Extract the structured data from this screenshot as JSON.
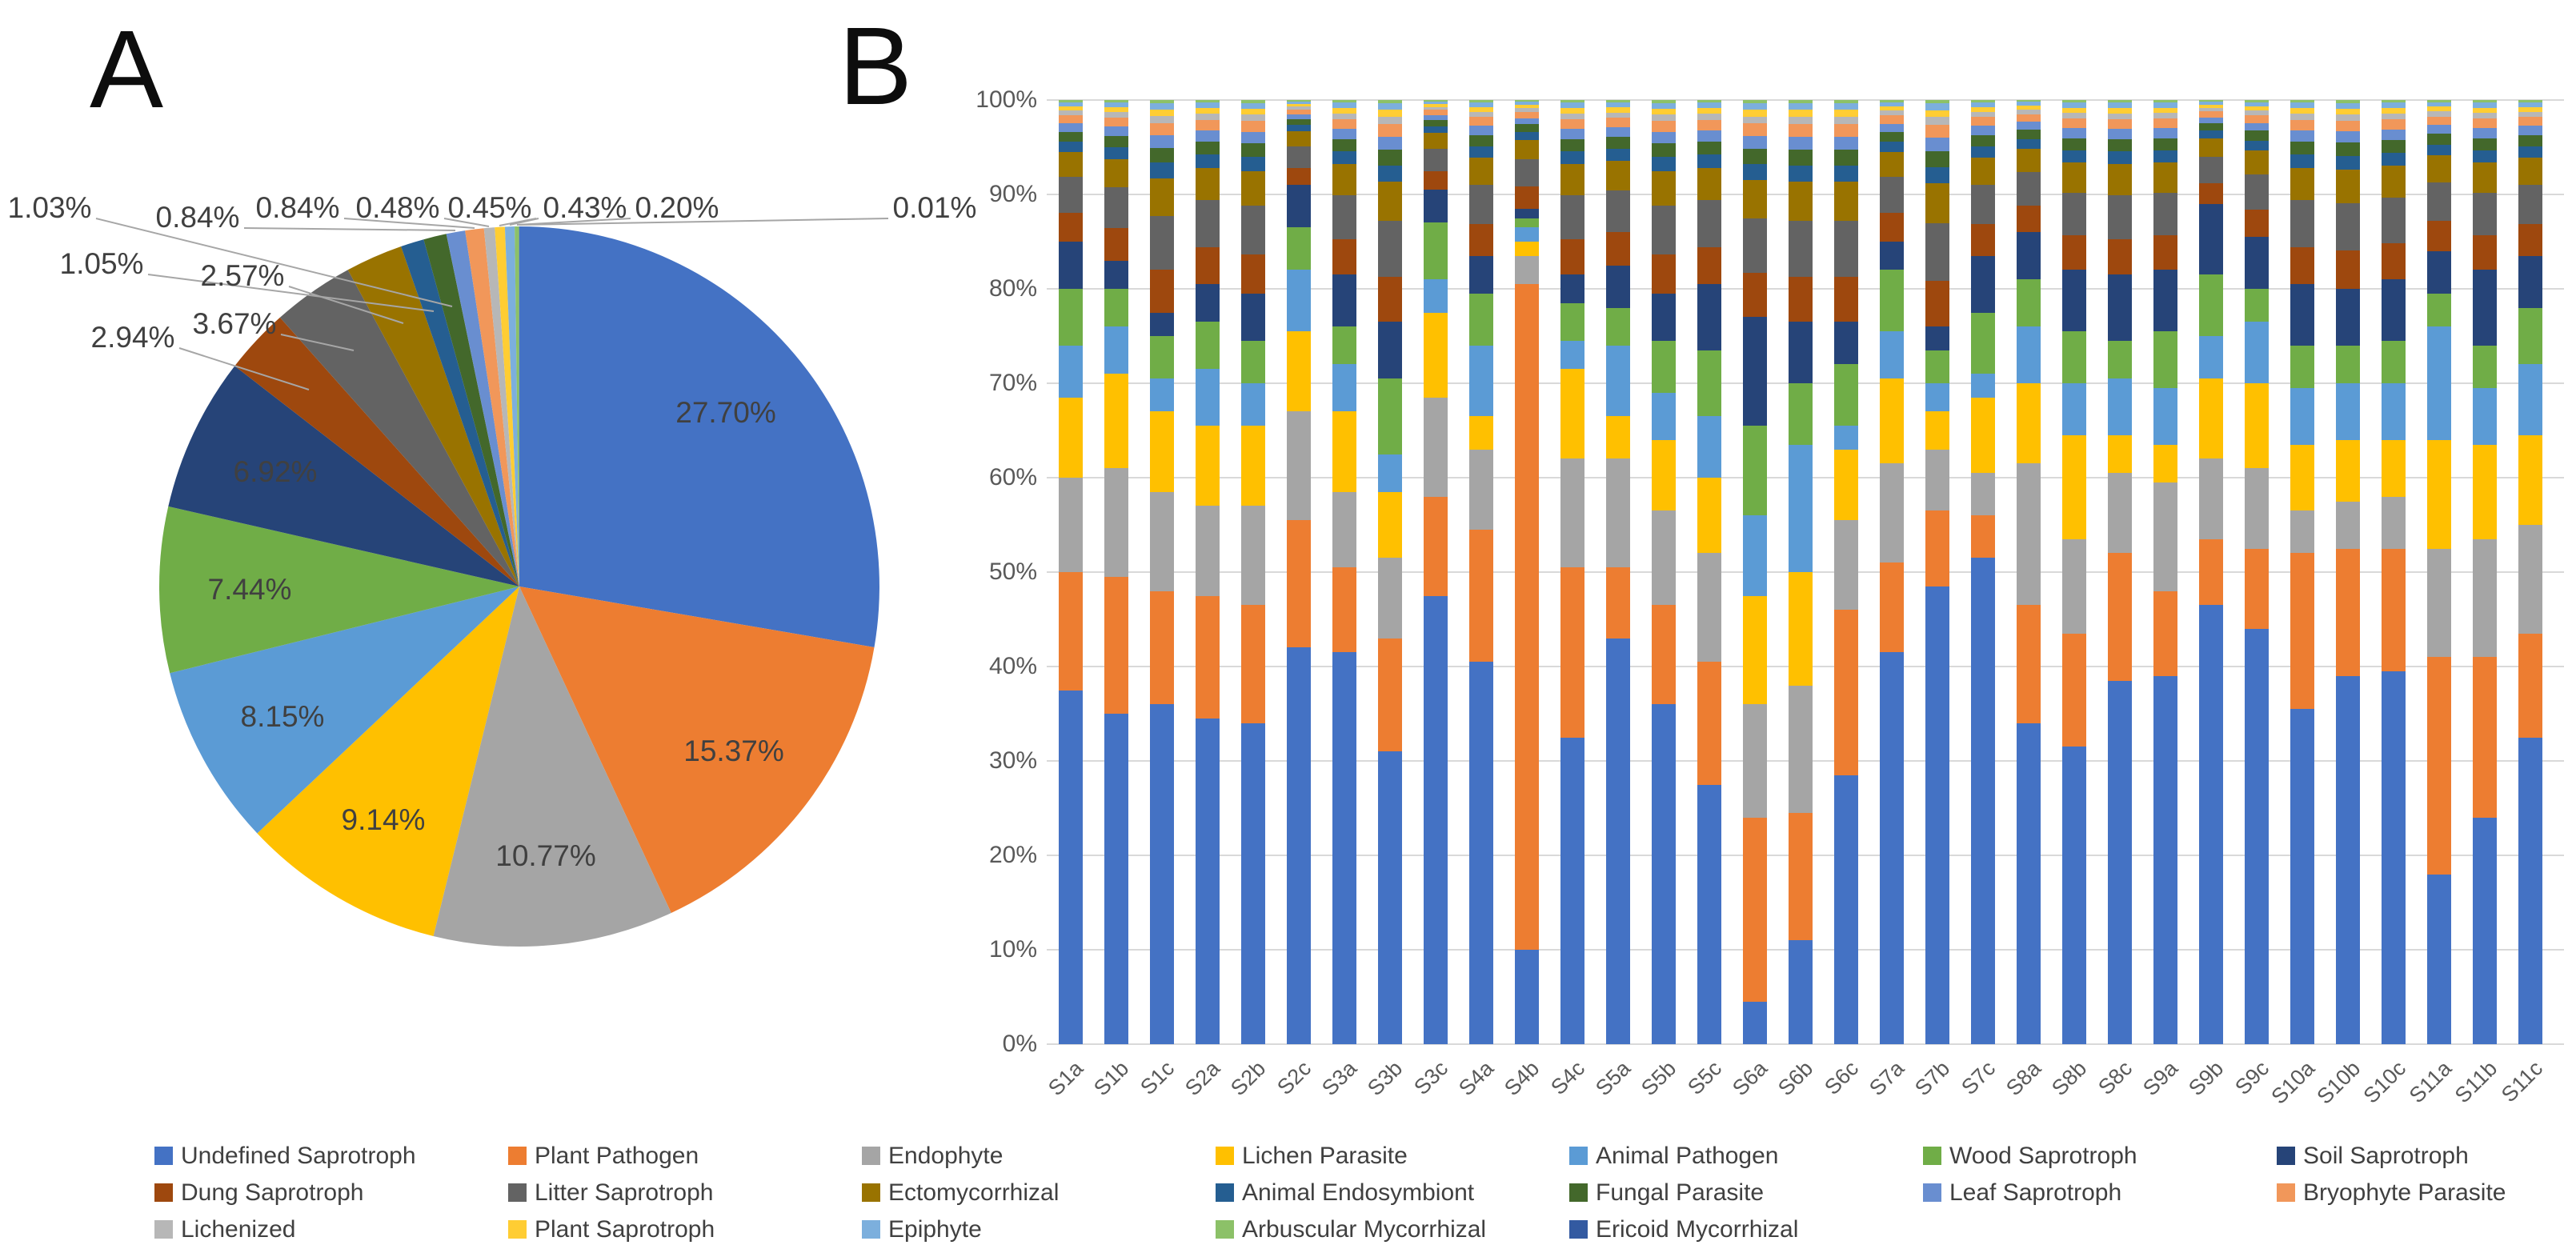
{
  "figure": {
    "panel_a_label": "A",
    "panel_b_label": "B"
  },
  "guilds": [
    {
      "label": "Undefined Saprotroph",
      "color": "#4472C4"
    },
    {
      "label": "Plant Pathogen",
      "color": "#ED7D31"
    },
    {
      "label": "Endophyte",
      "color": "#A5A5A5"
    },
    {
      "label": "Lichen Parasite",
      "color": "#FFC000"
    },
    {
      "label": "Animal Pathogen",
      "color": "#5B9BD5"
    },
    {
      "label": "Wood Saprotroph",
      "color": "#70AD47"
    },
    {
      "label": "Soil Saprotroph",
      "color": "#264478"
    },
    {
      "label": "Dung Saprotroph",
      "color": "#9E480E"
    },
    {
      "label": "Litter Saprotroph",
      "color": "#636363"
    },
    {
      "label": "Ectomycorrhizal",
      "color": "#997300"
    },
    {
      "label": "Animal Endosymbiont",
      "color": "#255E91"
    },
    {
      "label": "Fungal Parasite",
      "color": "#43682B"
    },
    {
      "label": "Leaf Saprotroph",
      "color": "#698ED0"
    },
    {
      "label": "Bryophyte Parasite",
      "color": "#F1975A"
    },
    {
      "label": "Lichenized",
      "color": "#B7B7B7"
    },
    {
      "label": "Plant Saprotroph",
      "color": "#FFCD33"
    },
    {
      "label": "Epiphyte",
      "color": "#7CAFDD"
    },
    {
      "label": "Arbuscular Mycorrhizal",
      "color": "#8CC168"
    },
    {
      "label": "Ericoid Mycorrhizal",
      "color": "#335AA1"
    }
  ],
  "chart_data": [
    {
      "type": "pie",
      "panel": "A",
      "title": "",
      "note": "Relative abundance of fungal functional guilds across the whole study; slices drawn clockwise from 12 o'clock in legend order.",
      "slices": [
        {
          "label": "Undefined Saprotroph",
          "value": 27.7,
          "display": "27.70%",
          "placement": "inside"
        },
        {
          "label": "Plant Pathogen",
          "value": 15.37,
          "display": "15.37%",
          "placement": "inside"
        },
        {
          "label": "Endophyte",
          "value": 10.77,
          "display": "10.77%",
          "placement": "inside"
        },
        {
          "label": "Lichen Parasite",
          "value": 9.14,
          "display": "9.14%",
          "placement": "inside"
        },
        {
          "label": "Animal Pathogen",
          "value": 8.15,
          "display": "8.15%",
          "placement": "inside"
        },
        {
          "label": "Wood Saprotroph",
          "value": 7.44,
          "display": "7.44%",
          "placement": "inside"
        },
        {
          "label": "Soil Saprotroph",
          "value": 6.92,
          "display": "6.92%",
          "placement": "inside",
          "muted": true
        },
        {
          "label": "Dung Saprotroph",
          "value": 2.94,
          "display": "2.94%",
          "placement": "callout",
          "x": 166,
          "y": 421
        },
        {
          "label": "Litter Saprotroph",
          "value": 3.67,
          "display": "3.67%",
          "placement": "callout",
          "x": 293,
          "y": 404
        },
        {
          "label": "Ectomycorrhizal",
          "value": 2.57,
          "display": "2.57%",
          "placement": "callout",
          "x": 303,
          "y": 344
        },
        {
          "label": "Animal Endosymbiont",
          "value": 1.05,
          "display": "1.05%",
          "placement": "callout",
          "x": 127,
          "y": 329
        },
        {
          "label": "Fungal Parasite",
          "value": 1.03,
          "display": "1.03%",
          "placement": "callout",
          "x": 62,
          "y": 259
        },
        {
          "label": "Leaf Saprotroph",
          "value": 0.84,
          "display": "0.84%",
          "placement": "callout",
          "x": 247,
          "y": 271
        },
        {
          "label": "Bryophyte Parasite",
          "value": 0.84,
          "display": "0.84%",
          "placement": "callout",
          "x": 372,
          "y": 259
        },
        {
          "label": "Lichenized",
          "value": 0.48,
          "display": "0.48%",
          "placement": "callout",
          "x": 497,
          "y": 259
        },
        {
          "label": "Plant Saprotroph",
          "value": 0.45,
          "display": "0.45%",
          "placement": "callout",
          "x": 612,
          "y": 259
        },
        {
          "label": "Epiphyte",
          "value": 0.43,
          "display": "0.43%",
          "placement": "callout",
          "x": 731,
          "y": 259
        },
        {
          "label": "Arbuscular Mycorrhizal",
          "value": 0.2,
          "display": "0.20%",
          "placement": "callout",
          "x": 846,
          "y": 259
        },
        {
          "label": "Ericoid Mycorrhizal",
          "value": 0.01,
          "display": "0.01%",
          "placement": "callout",
          "x": 1168,
          "y": 259
        }
      ]
    },
    {
      "type": "bar",
      "stacked": true,
      "panel": "B",
      "title": "",
      "ylim": [
        0,
        100
      ],
      "grid": true,
      "y_axis_ticks": [
        "0%",
        "10%",
        "20%",
        "30%",
        "40%",
        "50%",
        "60%",
        "70%",
        "80%",
        "90%",
        "100%"
      ],
      "categories": [
        "S1a",
        "S1b",
        "S1c",
        "S2a",
        "S2b",
        "S2c",
        "S3a",
        "S3b",
        "S3c",
        "S4a",
        "S4b",
        "S4c",
        "S5a",
        "S5b",
        "S5c",
        "S6a",
        "S6b",
        "S6c",
        "S7a",
        "S7b",
        "S7c",
        "S8a",
        "S8b",
        "S8c",
        "S9a",
        "S9b",
        "S9c",
        "S10a",
        "S10b",
        "S10c",
        "S11a",
        "S11b",
        "S11c"
      ],
      "series": [
        {
          "name": "Undefined Saprotroph",
          "values": [
            37.5,
            35,
            36,
            34.5,
            34,
            42,
            41.5,
            31,
            47.5,
            40.5,
            10,
            32.5,
            43,
            36,
            27.5,
            4.5,
            11,
            28.5,
            41.5,
            48.5,
            51.5,
            34,
            31.5,
            38.5,
            39,
            46.5,
            44,
            35.5,
            39,
            39.5,
            18,
            24,
            32.5
          ]
        },
        {
          "name": "Plant Pathogen",
          "values": [
            12.5,
            14.5,
            12,
            13,
            12.5,
            13.5,
            9,
            12,
            10.5,
            14,
            70.5,
            18,
            7.5,
            10.5,
            13,
            19.5,
            13.5,
            17.5,
            9.5,
            8,
            4.5,
            12.5,
            12,
            13.5,
            9,
            7,
            8.5,
            16.5,
            13.5,
            13,
            23,
            17,
            11
          ]
        },
        {
          "name": "Endophyte",
          "values": [
            10,
            11.5,
            10.5,
            9.5,
            10.5,
            11.5,
            8,
            8.5,
            10.5,
            8.5,
            3,
            11.5,
            11.5,
            10,
            11.5,
            12,
            13.5,
            9.5,
            10.5,
            6.5,
            4.5,
            15,
            10,
            8.5,
            11.5,
            8.5,
            8.5,
            4.5,
            5,
            5.5,
            11.5,
            12.5,
            11.5
          ]
        },
        {
          "name": "Lichen Parasite",
          "values": [
            8.5,
            10,
            8.5,
            8.5,
            8.5,
            8.5,
            8.5,
            7,
            9,
            3.5,
            1.5,
            9.5,
            4.5,
            7.5,
            8,
            11.5,
            12,
            7.5,
            9,
            4,
            8,
            8.5,
            11,
            4,
            4,
            8.5,
            9,
            7,
            6.5,
            6,
            11.5,
            10,
            9.5
          ]
        },
        {
          "name": "Animal Pathogen",
          "values": [
            5.5,
            5,
            3.5,
            6,
            4.5,
            6.5,
            5,
            4,
            3.5,
            7.5,
            1.5,
            3,
            7.5,
            5,
            6.5,
            8.5,
            13.5,
            2.5,
            5,
            3,
            2.5,
            6,
            5.5,
            6,
            6,
            4.5,
            6.5,
            6,
            6,
            6,
            12,
            6,
            7.5
          ]
        },
        {
          "name": "Wood Saprotroph",
          "values": [
            6,
            4,
            4.5,
            5,
            4.5,
            4.5,
            4,
            8,
            6,
            5.5,
            1,
            4,
            4,
            5.5,
            7,
            9.5,
            6.5,
            6.5,
            6.5,
            3.5,
            6.5,
            5,
            5.5,
            4,
            6,
            6.5,
            3.5,
            4.5,
            4,
            4.5,
            3.5,
            4.5,
            6
          ]
        },
        {
          "name": "Soil Saprotroph",
          "values": [
            5,
            3,
            2.5,
            4,
            5,
            4.5,
            5.5,
            6,
            3.5,
            4,
            1,
            3,
            4.5,
            5,
            7,
            11.5,
            6.5,
            4.5,
            3,
            2.5,
            6,
            5,
            6.5,
            7,
            6.5,
            7.5,
            5.5,
            6.5,
            6,
            6.5,
            4.5,
            8,
            5.5
          ]
        }
      ],
      "minor_remainder": {
        "note": "Each bar totals 100%. The remainder above the seven major guilds is composed of the 12 minor guilds, stacked in legend order and estimated in proportion to their whole-study shares from panel A.",
        "weights": {
          "Dung Saprotroph": 2.94,
          "Litter Saprotroph": 3.67,
          "Ectomycorrhizal": 2.57,
          "Animal Endosymbiont": 1.05,
          "Fungal Parasite": 1.03,
          "Leaf Saprotroph": 0.84,
          "Bryophyte Parasite": 0.84,
          "Lichenized": 0.48,
          "Plant Saprotroph": 0.45,
          "Epiphyte": 0.43,
          "Arbuscular Mycorrhizal": 0.2,
          "Ericoid Mycorrhizal": 0.01
        }
      }
    }
  ]
}
